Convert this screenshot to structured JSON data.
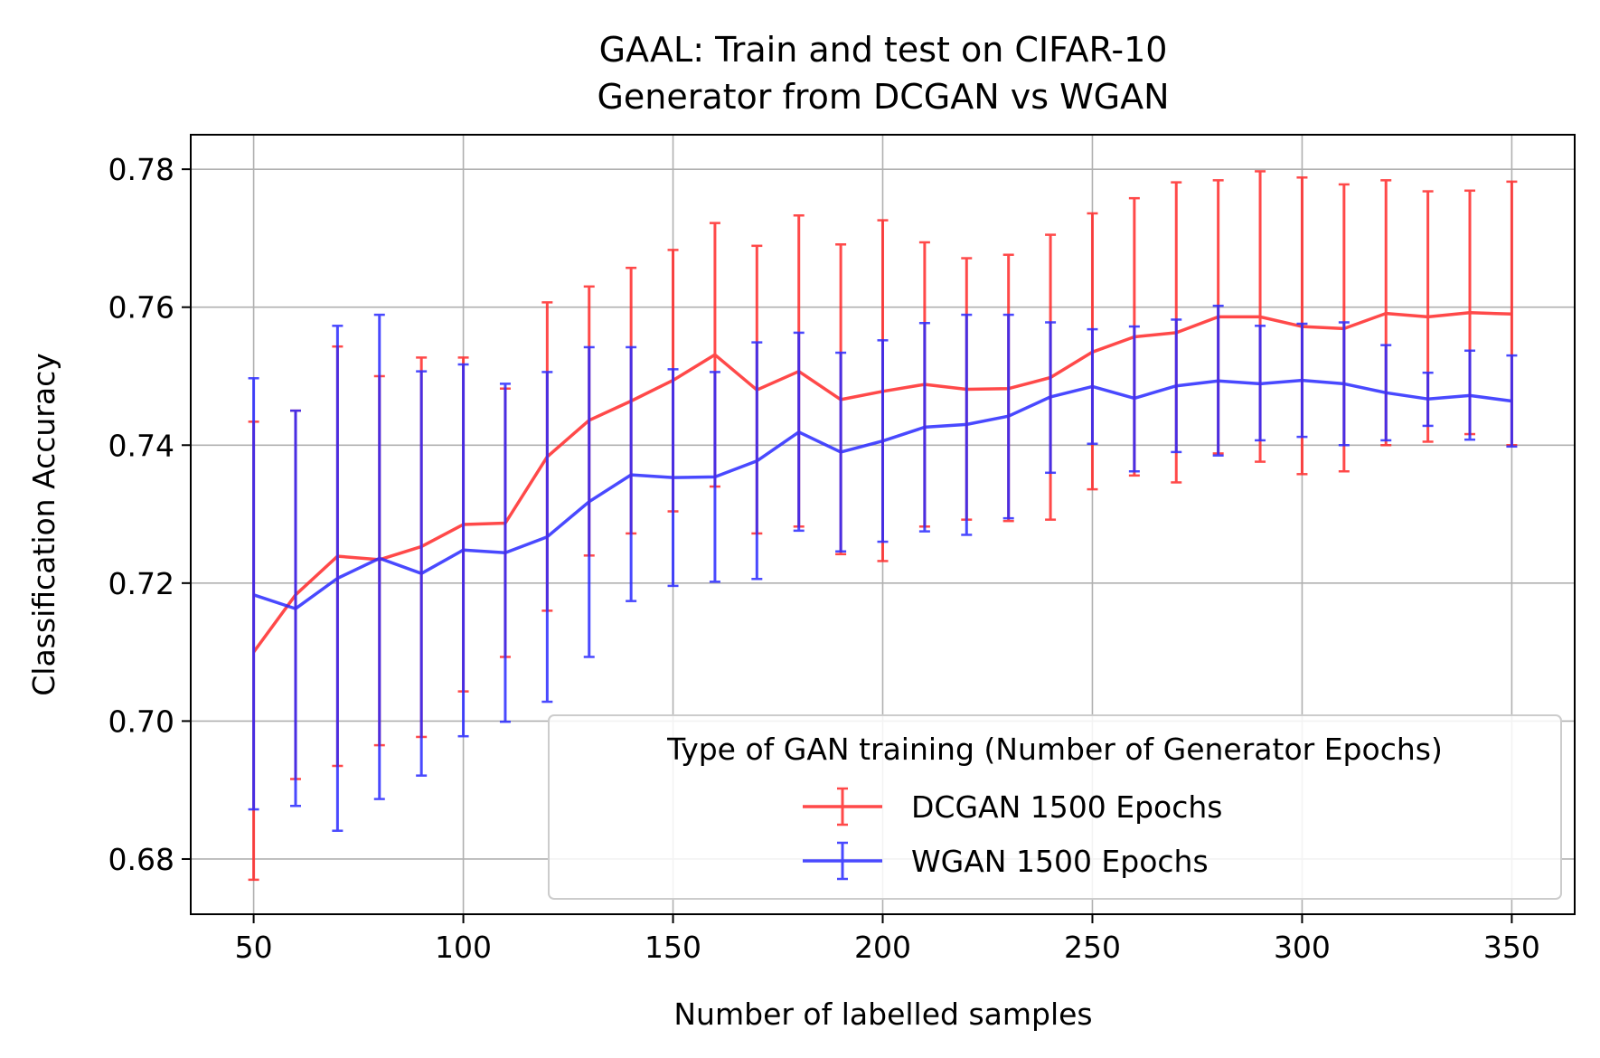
{
  "chart_data": {
    "type": "line",
    "title": [
      "GAAL: Train and test on CIFAR-10",
      "Generator from DCGAN vs WGAN"
    ],
    "xlabel": "Number of labelled samples",
    "ylabel": "Classification Accuracy",
    "xlim": [
      35,
      365
    ],
    "ylim": [
      0.672,
      0.785
    ],
    "xticks": [
      50,
      100,
      150,
      200,
      250,
      300,
      350
    ],
    "xtick_labels": [
      "50",
      "100",
      "150",
      "200",
      "250",
      "300",
      "350"
    ],
    "yticks": [
      0.68,
      0.7,
      0.72,
      0.74,
      0.76,
      0.78
    ],
    "ytick_labels": [
      "0.68",
      "0.70",
      "0.72",
      "0.74",
      "0.76",
      "0.78"
    ],
    "grid": true,
    "legend": {
      "title": "Type of GAN training (Number of Generator Epochs)",
      "placement": "lower-right"
    },
    "x": [
      50,
      60,
      70,
      80,
      90,
      100,
      110,
      120,
      130,
      140,
      150,
      160,
      170,
      180,
      190,
      200,
      210,
      220,
      230,
      240,
      250,
      260,
      270,
      280,
      290,
      300,
      310,
      320,
      330,
      340,
      350
    ],
    "series": [
      {
        "name": "DCGAN 1500 Epochs",
        "color": "#ff2a2a",
        "values": [
          0.71,
          0.7183,
          0.7239,
          0.7234,
          0.7253,
          0.7285,
          0.7287,
          0.7383,
          0.7436,
          0.7464,
          0.7494,
          0.7531,
          0.748,
          0.7507,
          0.7466,
          0.7478,
          0.7488,
          0.7481,
          0.7482,
          0.7498,
          0.7535,
          0.7557,
          0.7563,
          0.7586,
          0.7586,
          0.7572,
          0.7569,
          0.7591,
          0.7586,
          0.7592,
          0.759
        ],
        "err_low": [
          0.677,
          0.6916,
          0.6935,
          0.6965,
          0.6977,
          0.7043,
          0.7093,
          0.716,
          0.724,
          0.7272,
          0.7304,
          0.734,
          0.7272,
          0.7282,
          0.7242,
          0.7232,
          0.7282,
          0.7292,
          0.729,
          0.7292,
          0.7336,
          0.7356,
          0.7346,
          0.7388,
          0.7376,
          0.7358,
          0.7362,
          0.74,
          0.7405,
          0.7416,
          0.74
        ],
        "err_high": [
          0.7434,
          0.745,
          0.7543,
          0.75,
          0.7527,
          0.7527,
          0.7482,
          0.7607,
          0.763,
          0.7657,
          0.7683,
          0.7722,
          0.7689,
          0.7733,
          0.7691,
          0.7726,
          0.7694,
          0.7671,
          0.7676,
          0.7705,
          0.7736,
          0.7758,
          0.7781,
          0.7784,
          0.7797,
          0.7788,
          0.7778,
          0.7784,
          0.7768,
          0.7769,
          0.7782
        ]
      },
      {
        "name": "WGAN 1500 Epochs",
        "color": "#2a2aff",
        "values": [
          0.7183,
          0.7163,
          0.7207,
          0.7236,
          0.7214,
          0.7248,
          0.7244,
          0.7267,
          0.7318,
          0.7357,
          0.7353,
          0.7354,
          0.7377,
          0.7419,
          0.739,
          0.7406,
          0.7426,
          0.743,
          0.7442,
          0.747,
          0.7485,
          0.7468,
          0.7486,
          0.7493,
          0.7489,
          0.7494,
          0.7489,
          0.7476,
          0.7467,
          0.7472,
          0.7464
        ],
        "err_low": [
          0.6872,
          0.6877,
          0.6841,
          0.6887,
          0.6921,
          0.6978,
          0.6999,
          0.7028,
          0.7093,
          0.7174,
          0.7196,
          0.7202,
          0.7206,
          0.7276,
          0.7246,
          0.726,
          0.7275,
          0.727,
          0.7294,
          0.736,
          0.7402,
          0.7362,
          0.739,
          0.7385,
          0.7407,
          0.7412,
          0.74,
          0.7407,
          0.7428,
          0.7408,
          0.7398
        ],
        "err_high": [
          0.7497,
          0.745,
          0.7573,
          0.7589,
          0.7507,
          0.7517,
          0.7489,
          0.7506,
          0.7542,
          0.7542,
          0.751,
          0.7506,
          0.7549,
          0.7563,
          0.7534,
          0.7552,
          0.7577,
          0.7589,
          0.7589,
          0.7578,
          0.7568,
          0.7572,
          0.7582,
          0.7602,
          0.7573,
          0.7576,
          0.7578,
          0.7545,
          0.7505,
          0.7537,
          0.753
        ]
      }
    ]
  }
}
